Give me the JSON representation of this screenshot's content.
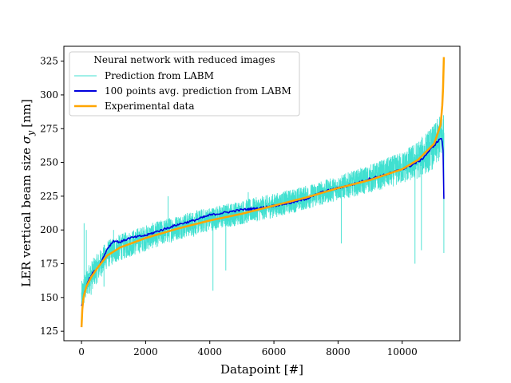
{
  "chart_data": {
    "type": "line",
    "title": "",
    "xlabel": "Datapoint [#]",
    "ylabel": "LER vertical beam size",
    "ylabel_symbol": "σ",
    "ylabel_subscript": "y",
    "ylabel_unit": "[nm]",
    "xlim": [
      -550,
      11800
    ],
    "ylim": [
      118,
      336
    ],
    "xticks": [
      0,
      2000,
      4000,
      6000,
      8000,
      10000
    ],
    "yticks": [
      125,
      150,
      175,
      200,
      225,
      250,
      275,
      300,
      325
    ],
    "grid": false,
    "legend": {
      "title": "Neural network with reduced images",
      "placement": "top-left"
    },
    "series": [
      {
        "name": "Prediction from LABM",
        "color": "#40e0d0",
        "style": "noisy-band",
        "n_points": 11300,
        "center": [
          [
            0,
            150
          ],
          [
            200,
            163
          ],
          [
            500,
            172
          ],
          [
            800,
            182
          ],
          [
            1200,
            187
          ],
          [
            2000,
            194
          ],
          [
            3000,
            202
          ],
          [
            4000,
            208
          ],
          [
            5000,
            213
          ],
          [
            6000,
            218
          ],
          [
            7000,
            224
          ],
          [
            8000,
            231
          ],
          [
            9000,
            238
          ],
          [
            10000,
            246
          ],
          [
            10500,
            252
          ],
          [
            11000,
            262
          ],
          [
            11300,
            272
          ]
        ],
        "band_halfwidth": [
          [
            0,
            12
          ],
          [
            1000,
            10
          ],
          [
            4000,
            9
          ],
          [
            8000,
            9
          ],
          [
            10000,
            12
          ],
          [
            11300,
            18
          ]
        ],
        "notable_spikes": [
          [
            80,
            205
          ],
          [
            150,
            200
          ],
          [
            300,
            152
          ],
          [
            700,
            158
          ],
          [
            1000,
            200
          ],
          [
            2700,
            225
          ],
          [
            3500,
            195
          ],
          [
            4100,
            155
          ],
          [
            4500,
            170
          ],
          [
            5200,
            228
          ],
          [
            7400,
            235
          ],
          [
            8100,
            190
          ],
          [
            10400,
            175
          ],
          [
            10600,
            185
          ],
          [
            11300,
            183
          ],
          [
            11050,
            277
          ],
          [
            11290,
            285
          ]
        ]
      },
      {
        "name": "100 points avg. prediction from LABM",
        "color": "#0000dd",
        "points": [
          [
            0,
            143
          ],
          [
            100,
            155
          ],
          [
            200,
            162
          ],
          [
            350,
            168
          ],
          [
            500,
            172
          ],
          [
            650,
            178
          ],
          [
            800,
            186
          ],
          [
            1000,
            192
          ],
          [
            1200,
            191
          ],
          [
            1500,
            194
          ],
          [
            2000,
            196
          ],
          [
            2500,
            200
          ],
          [
            3000,
            204
          ],
          [
            3500,
            207
          ],
          [
            4000,
            211
          ],
          [
            4500,
            213
          ],
          [
            5000,
            215
          ],
          [
            5500,
            216
          ],
          [
            6000,
            218
          ],
          [
            6500,
            220
          ],
          [
            7000,
            223
          ],
          [
            7500,
            228
          ],
          [
            8000,
            231
          ],
          [
            8500,
            234
          ],
          [
            9000,
            238
          ],
          [
            9500,
            241
          ],
          [
            10000,
            245
          ],
          [
            10300,
            248
          ],
          [
            10600,
            252
          ],
          [
            10900,
            260
          ],
          [
            11200,
            268
          ],
          [
            11270,
            265
          ],
          [
            11300,
            223
          ]
        ]
      },
      {
        "name": "Experimental data",
        "color": "#ffa500",
        "points": [
          [
            0,
            128
          ],
          [
            20,
            140
          ],
          [
            60,
            150
          ],
          [
            150,
            158
          ],
          [
            300,
            165
          ],
          [
            500,
            172
          ],
          [
            800,
            181
          ],
          [
            1200,
            187
          ],
          [
            2000,
            194
          ],
          [
            3000,
            201
          ],
          [
            4000,
            207
          ],
          [
            5000,
            212
          ],
          [
            6000,
            218
          ],
          [
            7000,
            224
          ],
          [
            8000,
            231
          ],
          [
            9000,
            237
          ],
          [
            10000,
            245
          ],
          [
            10500,
            252
          ],
          [
            11000,
            264
          ],
          [
            11200,
            278
          ],
          [
            11260,
            295
          ],
          [
            11290,
            315
          ],
          [
            11300,
            328
          ]
        ]
      }
    ]
  }
}
